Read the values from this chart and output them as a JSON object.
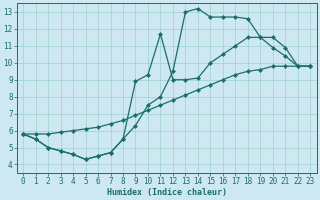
{
  "xlabel": "Humidex (Indice chaleur)",
  "bg_color": "#cde8f0",
  "grid_color": "#9ecfcf",
  "line_color": "#1a6e6a",
  "xlim": [
    -0.5,
    23.5
  ],
  "ylim": [
    3.5,
    13.5
  ],
  "xticks": [
    0,
    1,
    2,
    3,
    4,
    5,
    6,
    7,
    8,
    9,
    10,
    11,
    12,
    13,
    14,
    15,
    16,
    17,
    18,
    19,
    20,
    21,
    22,
    23
  ],
  "yticks": [
    4,
    5,
    6,
    7,
    8,
    9,
    10,
    11,
    12,
    13
  ],
  "line1_x": [
    0,
    1,
    2,
    3,
    4,
    5,
    6,
    7,
    8,
    9,
    10,
    11,
    12,
    13,
    14,
    15,
    16,
    17,
    18,
    19,
    20,
    21,
    22,
    23
  ],
  "line1_y": [
    5.8,
    5.5,
    5.0,
    4.8,
    4.6,
    4.3,
    4.5,
    4.7,
    5.5,
    6.3,
    7.5,
    8.0,
    9.5,
    13.0,
    13.2,
    12.7,
    12.7,
    12.7,
    12.6,
    11.5,
    10.9,
    10.4,
    9.8,
    9.8
  ],
  "line2_x": [
    0,
    1,
    2,
    3,
    4,
    5,
    6,
    7,
    8,
    9,
    10,
    11,
    12,
    13,
    14,
    15,
    16,
    17,
    18,
    19,
    20,
    21,
    22,
    23
  ],
  "line2_y": [
    5.8,
    5.8,
    5.8,
    5.9,
    6.0,
    6.1,
    6.2,
    6.4,
    6.6,
    6.9,
    7.2,
    7.5,
    7.8,
    8.1,
    8.4,
    8.7,
    9.0,
    9.3,
    9.5,
    9.6,
    9.8,
    9.8,
    9.8,
    9.8
  ],
  "line3_x": [
    0,
    1,
    2,
    3,
    4,
    5,
    6,
    7,
    8,
    9,
    10,
    11,
    12,
    13,
    14,
    15,
    16,
    17,
    18,
    19,
    20,
    21,
    22,
    23
  ],
  "line3_y": [
    5.8,
    5.5,
    5.0,
    4.8,
    4.6,
    4.3,
    4.5,
    4.7,
    5.5,
    8.9,
    9.3,
    11.7,
    9.0,
    9.0,
    9.1,
    10.0,
    10.5,
    11.0,
    11.5,
    11.5,
    11.5,
    10.9,
    9.8,
    9.8
  ],
  "marker_size": 2.5,
  "linewidth": 0.9,
  "tick_fontsize": 5.5,
  "xlabel_fontsize": 6.0
}
